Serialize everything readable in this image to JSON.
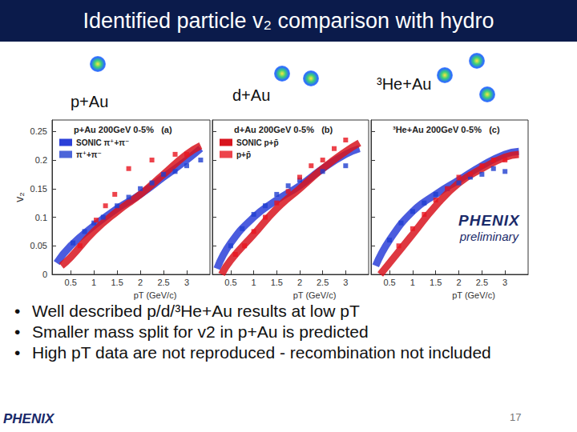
{
  "slide": {
    "title": "Identified particle v₂ comparison with hydro",
    "bullets": [
      "Well described p/d/³He+Au results at low pT",
      "Smaller mass split for v2 in  p+Au is  predicted",
      "High pT  data  are not reproduced - recombination not included"
    ],
    "logo": "PHENIX",
    "page_number": "17",
    "watermark": [
      "PHENIX",
      "preliminary"
    ]
  },
  "chart_data": [
    {
      "type": "scatter",
      "subtitle": "p+Au",
      "title": "p+Au 200GeV 0-5%   (a)",
      "xlabel": "pT (GeV/c)",
      "ylabel": "v₂",
      "xlim": [
        0.1,
        3.5
      ],
      "xticks": [
        0.5,
        1,
        1.5,
        2,
        2.5,
        3
      ],
      "ylim": [
        0,
        0.27
      ],
      "yticks": [
        0,
        0.05,
        0.1,
        0.15,
        0.2,
        0.25
      ],
      "legend": "upper left",
      "series": [
        {
          "name": "SONIC π⁺+π⁻",
          "type": "line",
          "line_style": "band",
          "color": "#2b3fd8",
          "x": [
            0.2,
            0.5,
            1.0,
            1.5,
            2.0,
            2.5,
            3.0,
            3.3
          ],
          "values": [
            0.02,
            0.05,
            0.085,
            0.115,
            0.14,
            0.17,
            0.2,
            0.22
          ]
        },
        {
          "type": "line",
          "line_style": "band",
          "color": "#d8141e",
          "x": [
            0.3,
            0.5,
            1.0,
            1.5,
            2.0,
            2.5,
            3.0,
            3.3
          ],
          "values": [
            0.015,
            0.03,
            0.075,
            0.11,
            0.14,
            0.175,
            0.21,
            0.225
          ]
        },
        {
          "name": "π⁺+π⁻",
          "type": "scatter",
          "marker": "square",
          "color": "#1f3fd0",
          "x": [
            0.55,
            0.8,
            1.0,
            1.2,
            1.5,
            1.75,
            2.0,
            2.25,
            2.5,
            2.75,
            3.0,
            3.3
          ],
          "values": [
            0.055,
            0.075,
            0.09,
            0.1,
            0.12,
            0.135,
            0.15,
            0.16,
            0.175,
            0.18,
            0.19,
            0.2
          ]
        },
        {
          "type": "scatter",
          "marker": "square",
          "color": "#e8141e",
          "x": [
            0.7,
            1.05,
            1.25,
            1.45,
            1.75,
            2.25,
            2.75,
            3.0
          ],
          "values": [
            0.05,
            0.095,
            0.12,
            0.14,
            0.185,
            0.2,
            0.21,
            0.21
          ]
        }
      ]
    },
    {
      "type": "scatter",
      "subtitle": "d+Au",
      "title": "d+Au 200GeV 0-5%   (b)",
      "xlabel": "pT (GeV/c)",
      "xlim": [
        0.1,
        3.5
      ],
      "xticks": [
        0.5,
        1,
        1.5,
        2,
        2.5,
        3
      ],
      "ylim": [
        0,
        0.27
      ],
      "yticks": [
        0,
        0.05,
        0.1,
        0.15,
        0.2,
        0.25
      ],
      "tick_labels": "x",
      "legend": "upper left",
      "series": [
        {
          "type": "line",
          "line_style": "band",
          "color": "#2b3fd8",
          "x": [
            0.2,
            0.5,
            1.0,
            1.5,
            2.0,
            2.5,
            3.0,
            3.3
          ],
          "values": [
            0.01,
            0.055,
            0.1,
            0.13,
            0.155,
            0.185,
            0.21,
            0.22
          ]
        },
        {
          "name": "SONIC p+p̄",
          "type": "line",
          "line_style": "band",
          "color": "#d8141e",
          "x": [
            0.3,
            0.5,
            1.0,
            1.5,
            2.0,
            2.5,
            3.0,
            3.3
          ],
          "values": [
            0.0,
            0.025,
            0.07,
            0.115,
            0.15,
            0.185,
            0.215,
            0.23
          ]
        },
        {
          "type": "scatter",
          "marker": "square",
          "color": "#1f3fd0",
          "x": [
            0.5,
            0.75,
            1.0,
            1.25,
            1.5,
            1.75,
            2.0,
            2.5,
            3.0
          ],
          "values": [
            0.05,
            0.08,
            0.105,
            0.12,
            0.14,
            0.155,
            0.165,
            0.18,
            0.19
          ]
        },
        {
          "name": "p+p̄",
          "type": "scatter",
          "marker": "square",
          "color": "#e8141e",
          "x": [
            0.6,
            0.8,
            1.0,
            1.25,
            1.5,
            1.75,
            2.0,
            2.25,
            2.5,
            2.75,
            3.0
          ],
          "values": [
            0.035,
            0.05,
            0.075,
            0.1,
            0.125,
            0.145,
            0.17,
            0.19,
            0.2,
            0.22,
            0.235
          ]
        }
      ]
    },
    {
      "type": "scatter",
      "subtitle": "³He+Au",
      "title": "³He+Au 200GeV 0-5%   (c)",
      "xlabel": "pT (GeV/c)",
      "xlim": [
        0.1,
        3.5
      ],
      "xticks": [
        0.5,
        1,
        1.5,
        2,
        2.5,
        3
      ],
      "ylim": [
        0,
        0.27
      ],
      "yticks": [
        0,
        0.05,
        0.1,
        0.15,
        0.2,
        0.25
      ],
      "tick_labels": "x",
      "series": [
        {
          "type": "line",
          "line_style": "band",
          "color": "#2b3fd8",
          "x": [
            0.2,
            0.5,
            1.0,
            1.5,
            2.0,
            2.5,
            3.0,
            3.3
          ],
          "values": [
            0.015,
            0.06,
            0.11,
            0.14,
            0.165,
            0.19,
            0.21,
            0.215
          ]
        },
        {
          "type": "line",
          "line_style": "band",
          "color": "#d8141e",
          "x": [
            0.3,
            0.5,
            1.0,
            1.5,
            2.0,
            2.5,
            3.0,
            3.3
          ],
          "values": [
            0.0,
            0.02,
            0.07,
            0.12,
            0.16,
            0.185,
            0.205,
            0.21
          ]
        },
        {
          "type": "scatter",
          "marker": "square",
          "color": "#1f3fd0",
          "x": [
            0.5,
            0.75,
            1.0,
            1.25,
            1.5,
            1.75,
            2.0,
            2.25,
            2.5,
            2.75,
            3.0
          ],
          "values": [
            0.06,
            0.09,
            0.11,
            0.125,
            0.14,
            0.15,
            0.16,
            0.17,
            0.175,
            0.185,
            0.18
          ]
        },
        {
          "type": "scatter",
          "marker": "square",
          "color": "#e8141e",
          "x": [
            0.7,
            1.0,
            1.25,
            1.5,
            1.75,
            2.0,
            2.25,
            2.5,
            2.75,
            3.0
          ],
          "values": [
            0.05,
            0.08,
            0.105,
            0.13,
            0.15,
            0.17,
            0.175,
            0.19,
            0.2,
            0.2
          ]
        }
      ]
    }
  ]
}
